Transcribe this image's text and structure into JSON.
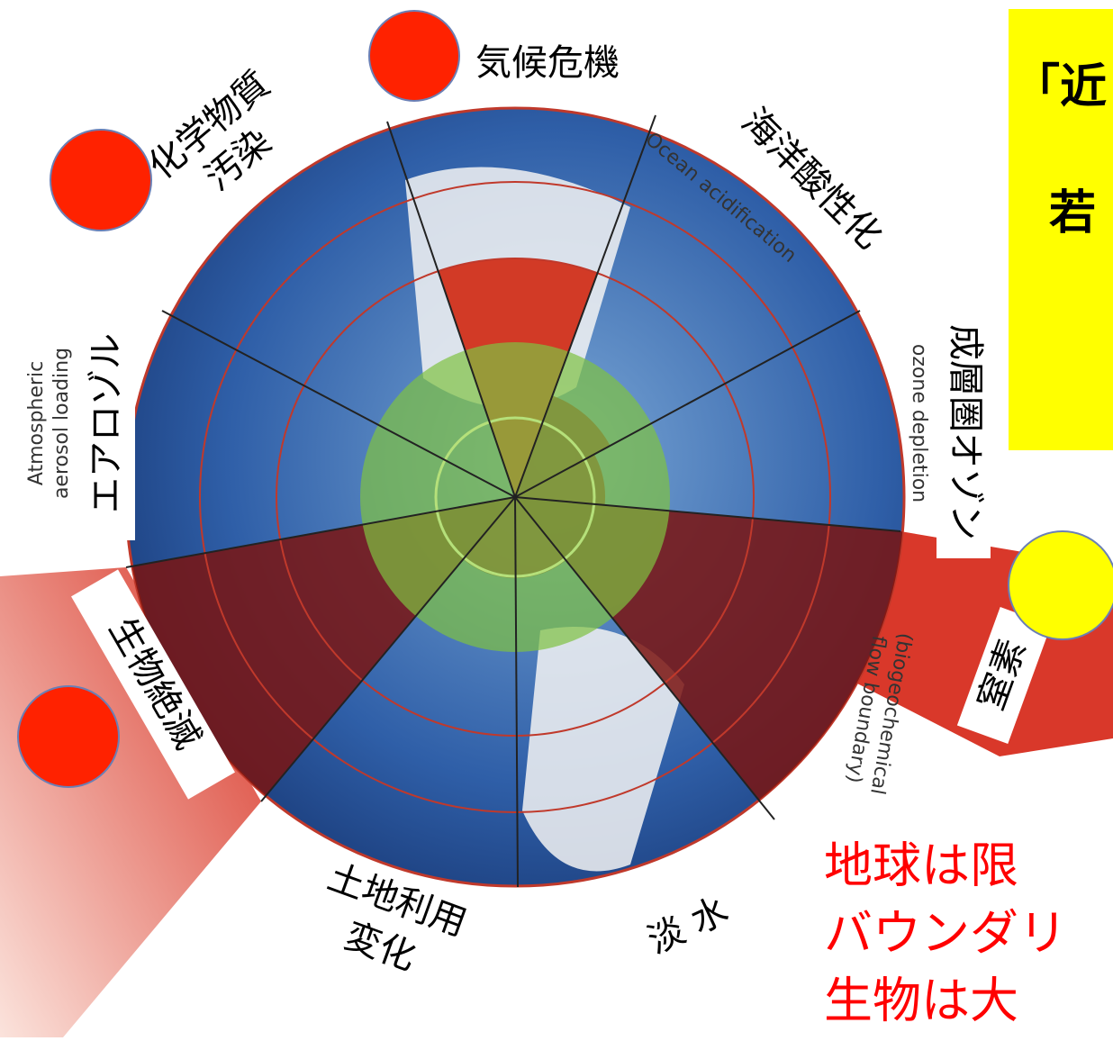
{
  "title_box": {
    "lines": [
      "「近",
      "若"
    ]
  },
  "labels": {
    "climate": "気候危機",
    "chemical": [
      "化学物質",
      "汚染"
    ],
    "ocean": "海洋酸性化",
    "ozone": "成層圏オゾン",
    "aerosol": "エアロゾル",
    "biodiversity": "生物絶滅",
    "land_use": [
      "土地利用",
      "変化"
    ],
    "freshwater": "淡 水",
    "nitrogen": "窒素"
  },
  "english_labels": {
    "ocean": "Ocean acidification",
    "ozone": "ozone depletion",
    "aerosol": [
      "Atmospheric",
      "aerosol loading"
    ],
    "nitrogen": [
      "(biogeochemical",
      "flow boundary)"
    ]
  },
  "caption": [
    "地球は限",
    "バウンダリ",
    "生物は大"
  ]
}
